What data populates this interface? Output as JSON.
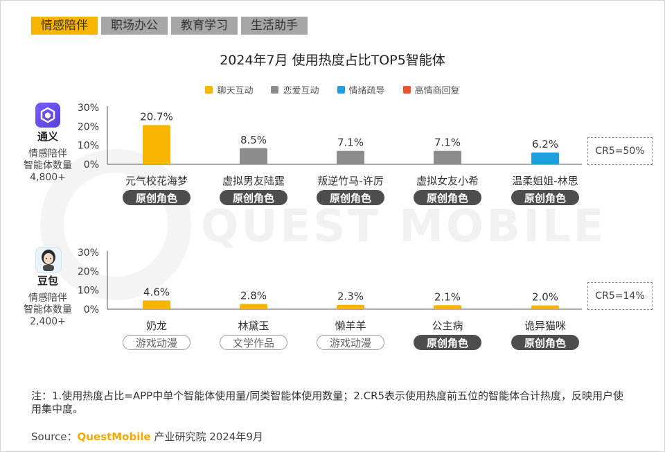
{
  "tabs": [
    {
      "label": "情感陪伴",
      "active": true
    },
    {
      "label": "职场办公",
      "active": false
    },
    {
      "label": "教育学习",
      "active": false
    },
    {
      "label": "生活助手",
      "active": false
    }
  ],
  "title": "2024年7月 使用热度占比TOP5智能体",
  "watermark": "QUEST MOBILE",
  "legend": [
    {
      "label": "聊天互动",
      "color": "#f7b500"
    },
    {
      "label": "恋爱互动",
      "color": "#8c8c8c"
    },
    {
      "label": "情绪疏导",
      "color": "#1ea0e0"
    },
    {
      "label": "高情商回复",
      "color": "#e8542f"
    }
  ],
  "chart_data": [
    {
      "type": "bar",
      "app": {
        "name": "通义",
        "desc_line1": "情感陪伴",
        "desc_line2": "智能体数量",
        "desc_line3": "4,800+"
      },
      "categories": [
        "元气校花海梦",
        "虚拟男友陆霆",
        "叛逆竹马-许厉",
        "虚拟女友小希",
        "温柔姐姐-林思"
      ],
      "values": [
        20.7,
        8.5,
        7.1,
        7.1,
        6.2
      ],
      "value_labels": [
        "20.7%",
        "8.5%",
        "7.1%",
        "7.1%",
        "6.2%"
      ],
      "bar_colors": [
        "#f7b500",
        "#8c8c8c",
        "#8c8c8c",
        "#8c8c8c",
        "#1ea0e0"
      ],
      "tags": [
        {
          "label": "原创角色",
          "style": "orig"
        },
        {
          "label": "原创角色",
          "style": "orig"
        },
        {
          "label": "原创角色",
          "style": "orig"
        },
        {
          "label": "原创角色",
          "style": "orig"
        },
        {
          "label": "原创角色",
          "style": "orig"
        }
      ],
      "yticks": [
        "30%",
        "20%",
        "10%",
        "0%"
      ],
      "ylim": [
        0,
        30
      ],
      "cr5": "CR5=50%"
    },
    {
      "type": "bar",
      "app": {
        "name": "豆包",
        "desc_line1": "情感陪伴",
        "desc_line2": "智能体数量",
        "desc_line3": "2,400+"
      },
      "categories": [
        "奶龙",
        "林黛玉",
        "懒羊羊",
        "公主病",
        "诡异猫咪"
      ],
      "values": [
        4.6,
        2.8,
        2.3,
        2.1,
        2.0
      ],
      "value_labels": [
        "4.6%",
        "2.8%",
        "2.3%",
        "2.1%",
        "2.0%"
      ],
      "bar_colors": [
        "#f7b500",
        "#f7b500",
        "#f7b500",
        "#f7b500",
        "#f7b500"
      ],
      "tags": [
        {
          "label": "游戏动漫",
          "style": "other"
        },
        {
          "label": "文学作品",
          "style": "other"
        },
        {
          "label": "游戏动漫",
          "style": "other"
        },
        {
          "label": "原创角色",
          "style": "orig"
        },
        {
          "label": "原创角色",
          "style": "orig"
        }
      ],
      "yticks": [
        "30%",
        "20%",
        "10%",
        "0%"
      ],
      "ylim": [
        0,
        30
      ],
      "cr5": "CR5=14%"
    }
  ],
  "note": "注：1.使用热度占比=APP中单个智能体使用量/同类智能体使用数量；2.CR5表示使用热度前五位的智能体合计热度，反映用户使用集中度。",
  "source": {
    "prefix": "Source：",
    "brand": "QuestMobile",
    "suffix": " 产业研究院 2024年9月"
  }
}
